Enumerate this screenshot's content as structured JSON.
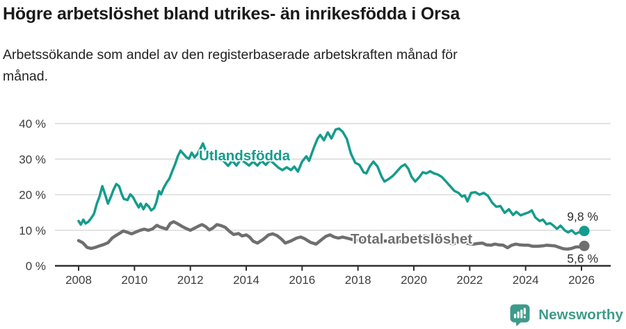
{
  "header": {
    "title": "Högre arbetslöshet bland utrikes- än inrikesfödda i Orsa",
    "subtitle_line1": "Arbetssökande som andel av den registerbaserade arbetskraften månad för",
    "subtitle_line2": "månad."
  },
  "footer": {
    "brand": "Newsworthy"
  },
  "colors": {
    "teal": "#149c8c",
    "gray": "#6f6f6f",
    "grid": "#dadada",
    "axis": "#2e2e2e",
    "tick_text": "#3d3d3d",
    "end_label_text": "#2e2e2e",
    "logo": "#3e9a8b",
    "title_text": "#1a1a1a"
  },
  "chart_data": {
    "type": "line",
    "title": "Högre arbetslöshet bland utrikes- än inrikesfödda i Orsa",
    "subtitle": "Arbetssökande som andel av den registerbaserade arbetskraften månad för månad.",
    "grid": true,
    "x_axis": {
      "ticks": [
        2008,
        2010,
        2012,
        2014,
        2016,
        2018,
        2020,
        2022,
        2024,
        2026
      ],
      "range": [
        2007.15,
        2027.05
      ]
    },
    "y_axis": {
      "ticks": [
        0,
        10,
        20,
        30,
        40
      ],
      "tick_labels": [
        "0 %",
        "10 %",
        "20 %",
        "30 %",
        "40 %"
      ],
      "unit": "%",
      "range": [
        0,
        40
      ]
    },
    "series": [
      {
        "name": "Utlandsfödda",
        "color": "#149c8c",
        "end_value": 9.8,
        "end_label": "9,8 %",
        "points": [
          [
            2008.0,
            12.6
          ],
          [
            2008.08,
            11.6
          ],
          [
            2008.17,
            13.0
          ],
          [
            2008.25,
            11.9
          ],
          [
            2008.35,
            12.4
          ],
          [
            2008.45,
            13.4
          ],
          [
            2008.55,
            14.6
          ],
          [
            2008.65,
            17.4
          ],
          [
            2008.75,
            19.5
          ],
          [
            2008.85,
            22.4
          ],
          [
            2008.95,
            20.0
          ],
          [
            2009.05,
            17.5
          ],
          [
            2009.15,
            19.3
          ],
          [
            2009.25,
            21.4
          ],
          [
            2009.35,
            23.0
          ],
          [
            2009.45,
            22.4
          ],
          [
            2009.55,
            20.0
          ],
          [
            2009.62,
            18.8
          ],
          [
            2009.75,
            18.5
          ],
          [
            2009.85,
            20.1
          ],
          [
            2009.95,
            19.3
          ],
          [
            2010.05,
            17.8
          ],
          [
            2010.15,
            16.4
          ],
          [
            2010.22,
            17.5
          ],
          [
            2010.32,
            15.9
          ],
          [
            2010.42,
            17.4
          ],
          [
            2010.52,
            16.6
          ],
          [
            2010.6,
            15.6
          ],
          [
            2010.7,
            16.2
          ],
          [
            2010.78,
            17.8
          ],
          [
            2010.88,
            21.0
          ],
          [
            2010.95,
            20.1
          ],
          [
            2011.05,
            22.0
          ],
          [
            2011.15,
            23.4
          ],
          [
            2011.25,
            24.5
          ],
          [
            2011.35,
            26.6
          ],
          [
            2011.45,
            28.5
          ],
          [
            2011.55,
            30.8
          ],
          [
            2011.65,
            32.4
          ],
          [
            2011.75,
            31.5
          ],
          [
            2011.85,
            30.6
          ],
          [
            2011.95,
            30.1
          ],
          [
            2012.05,
            31.8
          ],
          [
            2012.15,
            30.5
          ],
          [
            2012.25,
            31.4
          ],
          [
            2012.35,
            32.8
          ],
          [
            2012.45,
            34.4
          ],
          [
            2012.55,
            32.4
          ],
          [
            2012.65,
            30.8
          ],
          [
            2012.75,
            29.9
          ],
          [
            2012.85,
            31.2
          ],
          [
            2012.95,
            30.2
          ],
          [
            2013.05,
            30.8
          ],
          [
            2013.2,
            29.4
          ],
          [
            2013.35,
            28.1
          ],
          [
            2013.5,
            29.6
          ],
          [
            2013.65,
            28.2
          ],
          [
            2013.8,
            29.9
          ],
          [
            2013.95,
            29.1
          ],
          [
            2014.1,
            28.2
          ],
          [
            2014.25,
            29.3
          ],
          [
            2014.4,
            28.2
          ],
          [
            2014.55,
            29.5
          ],
          [
            2014.7,
            28.4
          ],
          [
            2014.85,
            29.7
          ],
          [
            2015.0,
            28.7
          ],
          [
            2015.15,
            27.6
          ],
          [
            2015.3,
            26.9
          ],
          [
            2015.45,
            27.7
          ],
          [
            2015.6,
            26.9
          ],
          [
            2015.72,
            27.9
          ],
          [
            2015.85,
            26.5
          ],
          [
            2016.0,
            29.3
          ],
          [
            2016.15,
            30.8
          ],
          [
            2016.25,
            29.5
          ],
          [
            2016.4,
            32.8
          ],
          [
            2016.55,
            35.7
          ],
          [
            2016.65,
            36.8
          ],
          [
            2016.78,
            35.3
          ],
          [
            2016.92,
            37.5
          ],
          [
            2017.05,
            35.8
          ],
          [
            2017.2,
            38.3
          ],
          [
            2017.32,
            38.6
          ],
          [
            2017.45,
            37.7
          ],
          [
            2017.6,
            35.7
          ],
          [
            2017.75,
            31.5
          ],
          [
            2017.9,
            29.0
          ],
          [
            2018.05,
            28.4
          ],
          [
            2018.2,
            26.3
          ],
          [
            2018.3,
            26.0
          ],
          [
            2018.42,
            27.9
          ],
          [
            2018.55,
            29.3
          ],
          [
            2018.7,
            27.9
          ],
          [
            2018.85,
            25.0
          ],
          [
            2018.95,
            23.7
          ],
          [
            2019.1,
            24.4
          ],
          [
            2019.25,
            25.3
          ],
          [
            2019.4,
            26.6
          ],
          [
            2019.55,
            27.9
          ],
          [
            2019.68,
            28.5
          ],
          [
            2019.8,
            27.3
          ],
          [
            2019.92,
            25.0
          ],
          [
            2020.05,
            23.7
          ],
          [
            2020.2,
            25.0
          ],
          [
            2020.32,
            26.3
          ],
          [
            2020.45,
            26.0
          ],
          [
            2020.58,
            26.6
          ],
          [
            2020.72,
            26.0
          ],
          [
            2020.85,
            25.7
          ],
          [
            2021.0,
            25.0
          ],
          [
            2021.15,
            23.7
          ],
          [
            2021.3,
            22.4
          ],
          [
            2021.45,
            21.1
          ],
          [
            2021.6,
            20.5
          ],
          [
            2021.72,
            19.5
          ],
          [
            2021.82,
            19.8
          ],
          [
            2021.92,
            18.1
          ],
          [
            2022.05,
            20.5
          ],
          [
            2022.2,
            20.7
          ],
          [
            2022.35,
            20.0
          ],
          [
            2022.5,
            20.5
          ],
          [
            2022.65,
            19.7
          ],
          [
            2022.8,
            17.8
          ],
          [
            2022.95,
            16.6
          ],
          [
            2023.1,
            16.8
          ],
          [
            2023.25,
            14.9
          ],
          [
            2023.4,
            15.9
          ],
          [
            2023.55,
            14.3
          ],
          [
            2023.67,
            15.2
          ],
          [
            2023.82,
            14.2
          ],
          [
            2023.95,
            14.6
          ],
          [
            2024.1,
            15.0
          ],
          [
            2024.22,
            15.6
          ],
          [
            2024.35,
            13.6
          ],
          [
            2024.5,
            12.6
          ],
          [
            2024.62,
            13.0
          ],
          [
            2024.75,
            11.7
          ],
          [
            2024.88,
            12.0
          ],
          [
            2025.0,
            11.3
          ],
          [
            2025.12,
            10.4
          ],
          [
            2025.25,
            11.3
          ],
          [
            2025.4,
            10.0
          ],
          [
            2025.52,
            9.4
          ],
          [
            2025.65,
            10.0
          ],
          [
            2025.78,
            9.0
          ],
          [
            2025.9,
            9.4
          ],
          [
            2026.0,
            9.3
          ],
          [
            2026.1,
            9.8
          ]
        ]
      },
      {
        "name": "Total arbetslöshet",
        "color": "#6f6f6f",
        "end_value": 5.6,
        "end_label": "5,6 %",
        "points": [
          [
            2008.0,
            7.1
          ],
          [
            2008.15,
            6.5
          ],
          [
            2008.3,
            5.2
          ],
          [
            2008.45,
            4.9
          ],
          [
            2008.6,
            5.2
          ],
          [
            2008.75,
            5.6
          ],
          [
            2008.9,
            6.0
          ],
          [
            2009.05,
            6.5
          ],
          [
            2009.2,
            7.8
          ],
          [
            2009.35,
            8.6
          ],
          [
            2009.5,
            9.3
          ],
          [
            2009.6,
            9.8
          ],
          [
            2009.75,
            9.4
          ],
          [
            2009.9,
            9.0
          ],
          [
            2010.05,
            9.5
          ],
          [
            2010.2,
            10.0
          ],
          [
            2010.35,
            10.3
          ],
          [
            2010.5,
            10.0
          ],
          [
            2010.65,
            10.4
          ],
          [
            2010.8,
            11.4
          ],
          [
            2010.92,
            10.9
          ],
          [
            2011.05,
            10.6
          ],
          [
            2011.15,
            10.3
          ],
          [
            2011.28,
            11.9
          ],
          [
            2011.4,
            12.4
          ],
          [
            2011.55,
            11.8
          ],
          [
            2011.7,
            11.1
          ],
          [
            2011.85,
            10.5
          ],
          [
            2012.0,
            10.0
          ],
          [
            2012.15,
            10.6
          ],
          [
            2012.3,
            11.2
          ],
          [
            2012.42,
            11.6
          ],
          [
            2012.55,
            11.0
          ],
          [
            2012.68,
            10.1
          ],
          [
            2012.8,
            10.6
          ],
          [
            2012.95,
            11.6
          ],
          [
            2013.1,
            11.3
          ],
          [
            2013.25,
            10.8
          ],
          [
            2013.4,
            9.7
          ],
          [
            2013.55,
            8.8
          ],
          [
            2013.72,
            9.1
          ],
          [
            2013.85,
            8.4
          ],
          [
            2014.0,
            8.7
          ],
          [
            2014.12,
            8.1
          ],
          [
            2014.25,
            6.9
          ],
          [
            2014.4,
            6.4
          ],
          [
            2014.6,
            7.4
          ],
          [
            2014.8,
            8.7
          ],
          [
            2014.95,
            9.0
          ],
          [
            2015.1,
            8.5
          ],
          [
            2015.25,
            7.6
          ],
          [
            2015.4,
            6.4
          ],
          [
            2015.6,
            7.0
          ],
          [
            2015.8,
            7.8
          ],
          [
            2015.95,
            8.1
          ],
          [
            2016.1,
            7.6
          ],
          [
            2016.3,
            6.6
          ],
          [
            2016.5,
            6.1
          ],
          [
            2016.7,
            7.4
          ],
          [
            2016.85,
            8.3
          ],
          [
            2017.0,
            8.7
          ],
          [
            2017.15,
            8.1
          ],
          [
            2017.3,
            7.8
          ],
          [
            2017.45,
            8.1
          ],
          [
            2017.6,
            7.8
          ],
          [
            2017.8,
            7.4
          ],
          [
            2018.0,
            7.2
          ],
          [
            2018.25,
            6.9
          ],
          [
            2018.5,
            7.1
          ],
          [
            2018.75,
            6.8
          ],
          [
            2019.0,
            7.0
          ],
          [
            2019.25,
            6.7
          ],
          [
            2019.5,
            6.9
          ],
          [
            2019.75,
            6.7
          ],
          [
            2020.0,
            7.0
          ],
          [
            2020.2,
            7.8
          ],
          [
            2020.4,
            8.4
          ],
          [
            2020.6,
            8.1
          ],
          [
            2020.8,
            7.7
          ],
          [
            2021.0,
            7.2
          ],
          [
            2021.2,
            6.6
          ],
          [
            2021.4,
            6.2
          ],
          [
            2021.55,
            6.4
          ],
          [
            2021.7,
            6.8
          ],
          [
            2021.85,
            6.4
          ],
          [
            2022.0,
            6.2
          ],
          [
            2022.15,
            6.1
          ],
          [
            2022.3,
            6.3
          ],
          [
            2022.45,
            6.4
          ],
          [
            2022.6,
            5.9
          ],
          [
            2022.75,
            5.8
          ],
          [
            2022.9,
            6.1
          ],
          [
            2023.05,
            5.9
          ],
          [
            2023.2,
            5.8
          ],
          [
            2023.35,
            5.1
          ],
          [
            2023.5,
            5.8
          ],
          [
            2023.65,
            6.1
          ],
          [
            2023.8,
            5.9
          ],
          [
            2023.95,
            5.8
          ],
          [
            2024.1,
            5.8
          ],
          [
            2024.25,
            5.5
          ],
          [
            2024.45,
            5.5
          ],
          [
            2024.6,
            5.6
          ],
          [
            2024.75,
            5.8
          ],
          [
            2024.9,
            5.7
          ],
          [
            2025.05,
            5.6
          ],
          [
            2025.2,
            5.2
          ],
          [
            2025.35,
            4.8
          ],
          [
            2025.5,
            4.7
          ],
          [
            2025.65,
            4.9
          ],
          [
            2025.8,
            5.3
          ],
          [
            2025.95,
            5.3
          ],
          [
            2026.1,
            5.6
          ]
        ]
      }
    ],
    "legend_position": "inline-labels"
  }
}
